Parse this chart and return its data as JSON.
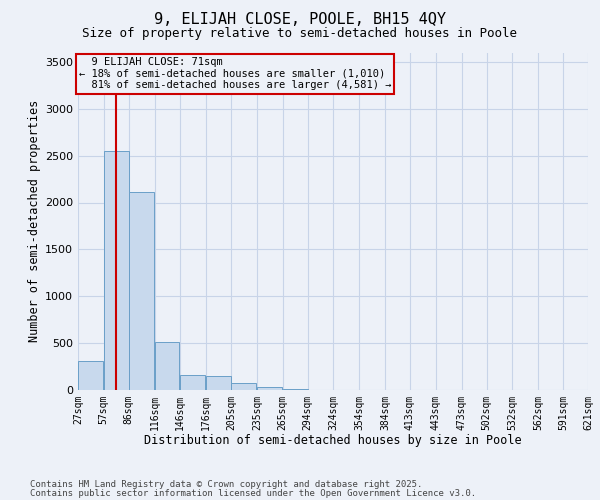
{
  "title": "9, ELIJAH CLOSE, POOLE, BH15 4QY",
  "subtitle": "Size of property relative to semi-detached houses in Poole",
  "xlabel": "Distribution of semi-detached houses by size in Poole",
  "ylabel": "Number of semi-detached properties",
  "property_label": "9 ELIJAH CLOSE: 71sqm",
  "pct_smaller": 18,
  "pct_larger": 81,
  "count_smaller": 1010,
  "count_larger": 4581,
  "bar_left_edges": [
    27,
    57,
    86,
    116,
    146,
    176,
    205,
    235,
    265,
    294,
    324,
    354,
    384,
    413,
    443,
    473,
    502,
    532,
    562,
    591
  ],
  "bar_heights": [
    310,
    2550,
    2110,
    510,
    155,
    145,
    70,
    30,
    8,
    4,
    1,
    0,
    0,
    0,
    0,
    0,
    0,
    0,
    0,
    0
  ],
  "bin_width": 29,
  "bar_color": "#c8d9ed",
  "bar_edge_color": "#6a9fc8",
  "vline_x": 71,
  "vline_color": "#cc0000",
  "annotation_box_color": "#cc0000",
  "grid_color": "#c8d4e8",
  "bg_color": "#edf1f8",
  "ylim": [
    0,
    3600
  ],
  "yticks": [
    0,
    500,
    1000,
    1500,
    2000,
    2500,
    3000,
    3500
  ],
  "categories": [
    "27sqm",
    "57sqm",
    "86sqm",
    "116sqm",
    "146sqm",
    "176sqm",
    "205sqm",
    "235sqm",
    "265sqm",
    "294sqm",
    "324sqm",
    "354sqm",
    "384sqm",
    "413sqm",
    "443sqm",
    "473sqm",
    "502sqm",
    "532sqm",
    "562sqm",
    "591sqm",
    "621sqm"
  ],
  "footer_line1": "Contains HM Land Registry data © Crown copyright and database right 2025.",
  "footer_line2": "Contains public sector information licensed under the Open Government Licence v3.0.",
  "title_fontsize": 11,
  "subtitle_fontsize": 9,
  "tick_fontsize": 7,
  "label_fontsize": 8.5,
  "footer_fontsize": 6.5
}
